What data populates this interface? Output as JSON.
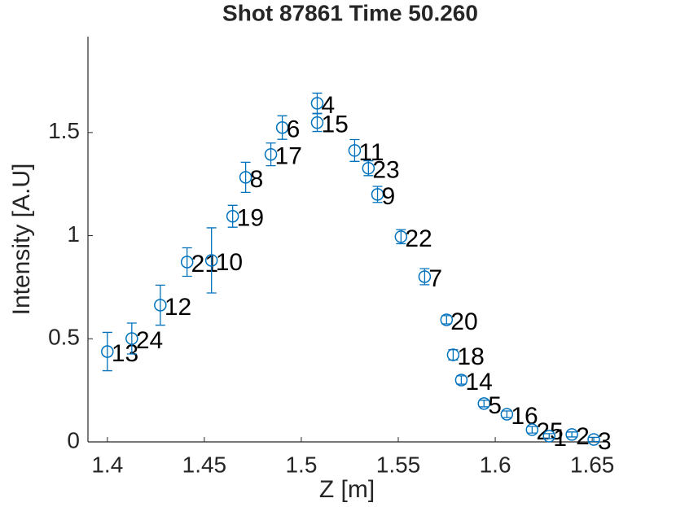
{
  "chart_data": {
    "type": "scatter",
    "title": "Shot 87861 Time 50.260",
    "xlabel": "Z [m]",
    "ylabel": "Intensity [A.U]",
    "color": "#0072BD",
    "xlim": [
      1.39,
      1.6575
    ],
    "ylim": [
      0,
      1.965
    ],
    "xticks": [
      1.4,
      1.45,
      1.5,
      1.55,
      1.6,
      1.65
    ],
    "yticks": [
      0,
      0.5,
      1,
      1.5
    ],
    "point_labels": [
      "13",
      "24",
      "12",
      "21",
      "10",
      "19",
      "8",
      "17",
      "6",
      "4",
      "15",
      "11",
      "23",
      "9",
      "22",
      "7",
      "20",
      "18",
      "14",
      "5",
      "16",
      "25",
      "1",
      "2",
      "3"
    ],
    "x": [
      1.4,
      1.4126,
      1.4273,
      1.4411,
      1.4537,
      1.4646,
      1.4713,
      1.4843,
      1.4902,
      1.5082,
      1.5082,
      1.5275,
      1.5346,
      1.5393,
      1.5514,
      1.5636,
      1.5749,
      1.5783,
      1.5825,
      1.5942,
      1.606,
      1.619,
      1.6278,
      1.6395,
      1.6508
    ],
    "values": [
      0.438,
      0.501,
      0.663,
      0.872,
      0.88,
      1.094,
      1.283,
      1.394,
      1.524,
      1.642,
      1.548,
      1.413,
      1.327,
      1.2,
      0.995,
      0.801,
      0.592,
      0.422,
      0.3,
      0.186,
      0.134,
      0.059,
      0.028,
      0.036,
      0.012
    ],
    "errors": [
      0.093,
      0.075,
      0.097,
      0.069,
      0.158,
      0.053,
      0.073,
      0.055,
      0.057,
      0.049,
      0.043,
      0.053,
      0.036,
      0.039,
      0.034,
      0.039,
      0.02,
      0.025,
      0.02,
      0.016,
      0.016,
      0.016,
      0.012,
      0.012,
      0.01
    ]
  }
}
